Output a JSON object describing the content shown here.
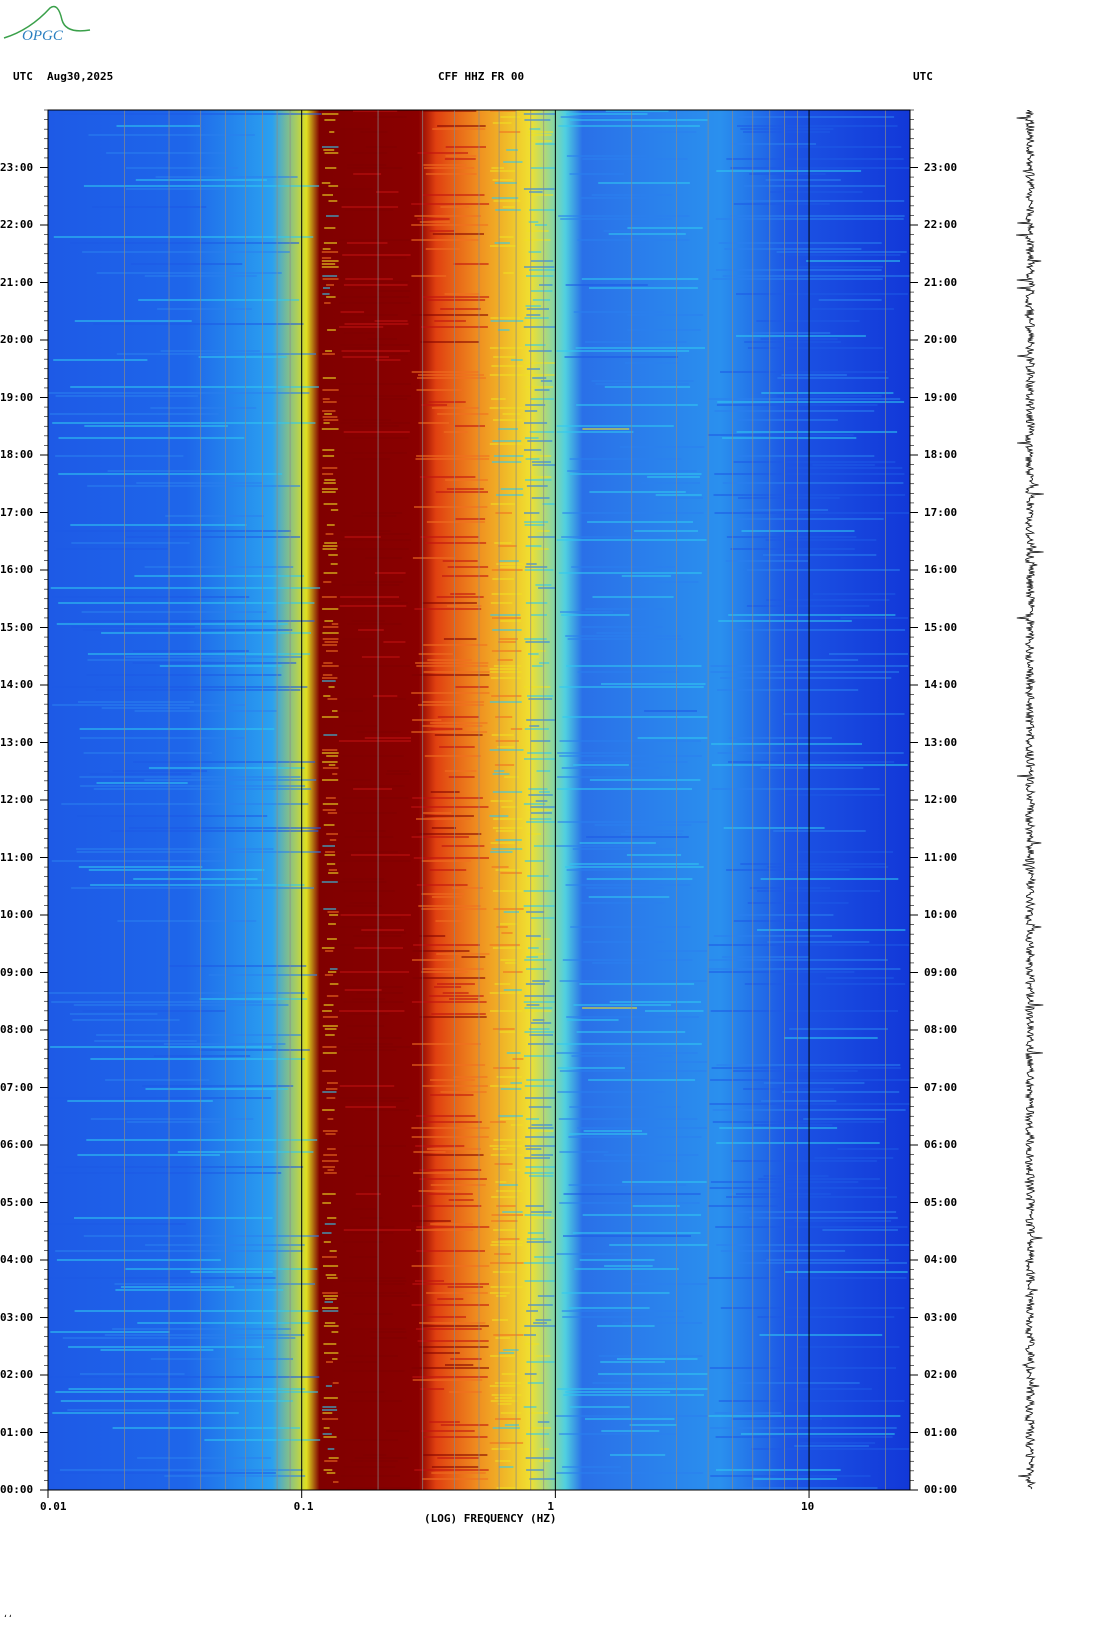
{
  "header": {
    "left_utc": "UTC",
    "date": "Aug30,2025",
    "station": "CFF HHZ FR 00",
    "right_utc": "UTC"
  },
  "logo": {
    "text": "OPGC",
    "color": "#3aa04a"
  },
  "footnote": "ʻʻ",
  "chart_data": {
    "type": "heatmap",
    "title": "CFF HHZ FR 00",
    "xlabel": "(LOG) FREQUENCY (HZ)",
    "ylabel": "UTC",
    "x_scale": "log",
    "xlim": [
      0.01,
      25
    ],
    "x_ticks": [
      "0.01",
      "0.1",
      "1",
      "10"
    ],
    "x_tick_values": [
      0.01,
      0.1,
      1,
      10
    ],
    "y_ticks": [
      "23:00",
      "22:00",
      "21:00",
      "20:00",
      "19:00",
      "18:00",
      "17:00",
      "16:00",
      "15:00",
      "14:00",
      "13:00",
      "12:00",
      "11:00",
      "10:00",
      "09:00",
      "08:00",
      "07:00",
      "06:00",
      "05:00",
      "04:00",
      "03:00",
      "02:00",
      "01:00",
      "00:00"
    ],
    "y_tick_values": [
      23,
      22,
      21,
      20,
      19,
      18,
      17,
      16,
      15,
      14,
      13,
      12,
      11,
      10,
      9,
      8,
      7,
      6,
      5,
      4,
      3,
      2,
      1,
      0
    ],
    "ylim": [
      0,
      24
    ],
    "colors": {
      "low": "#1e5ae6",
      "mid": "#30c8f0",
      "high": "#f0e020",
      "peak": "#800000"
    },
    "bands": [
      {
        "f_from": 0.01,
        "f_to": 0.12,
        "level": 0.18
      },
      {
        "f_from": 0.12,
        "f_to": 0.14,
        "level": 0.55
      },
      {
        "f_from": 0.14,
        "f_to": 0.27,
        "level": 1.0
      },
      {
        "f_from": 0.27,
        "f_to": 0.55,
        "level": 0.8
      },
      {
        "f_from": 0.55,
        "f_to": 0.75,
        "level": 0.5
      },
      {
        "f_from": 0.75,
        "f_to": 1.0,
        "level": 0.3
      },
      {
        "f_from": 1.0,
        "f_to": 4.0,
        "level": 0.25
      },
      {
        "f_from": 4.0,
        "f_to": 25,
        "level": 0.12
      }
    ]
  },
  "seismogram": {
    "color": "#000000"
  }
}
